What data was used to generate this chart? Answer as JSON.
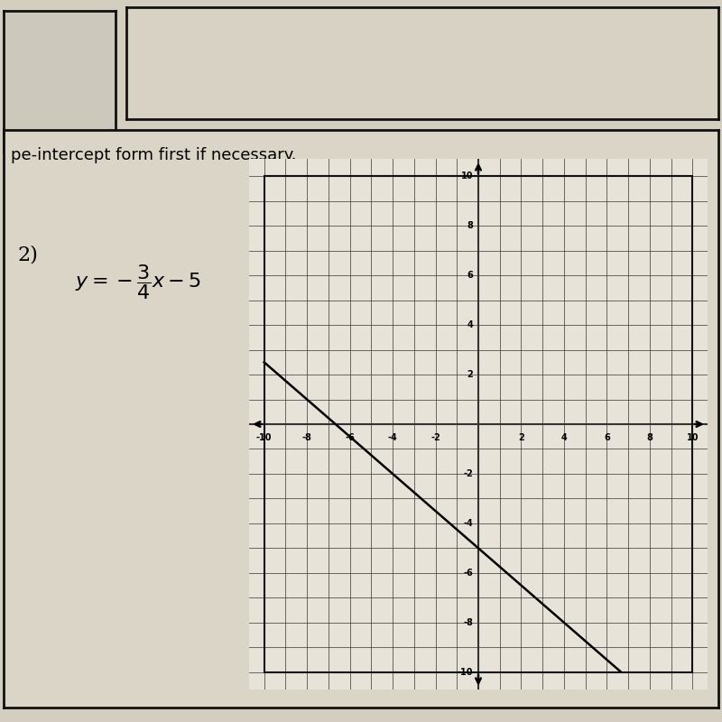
{
  "slope": -0.75,
  "intercept": -5,
  "xlim": [
    -10,
    10
  ],
  "ylim": [
    -10,
    10
  ],
  "line_color": "#000000",
  "bg_color": "#d4cec0",
  "paper_color": "#e8e3d8",
  "grid_line_color": "#333333",
  "grid_lw_minor": 0.5,
  "grid_lw_axis": 1.5,
  "tick_positions_x": [
    -10,
    -8,
    -6,
    -4,
    -2,
    2,
    4,
    6,
    8,
    10
  ],
  "tick_labels_x": [
    "-10",
    "-8",
    "-6",
    "-4",
    "-2",
    "2",
    "4",
    "6",
    "8",
    "10"
  ],
  "tick_positions_y": [
    -10,
    -8,
    -6,
    -4,
    -2,
    2,
    4,
    6,
    8,
    10
  ],
  "tick_labels_y": [
    "-10",
    "-8",
    "-6",
    "-4",
    "-2",
    "2",
    "4",
    "6",
    "8",
    "10"
  ],
  "instruction_text": "pe-intercept form first if necessary.",
  "eq_number": "2)",
  "box1_color": "#ccc8bc",
  "box2_color": "#d8d2c5",
  "main_box_color": "#dbd5c8",
  "border_color": "#111111"
}
